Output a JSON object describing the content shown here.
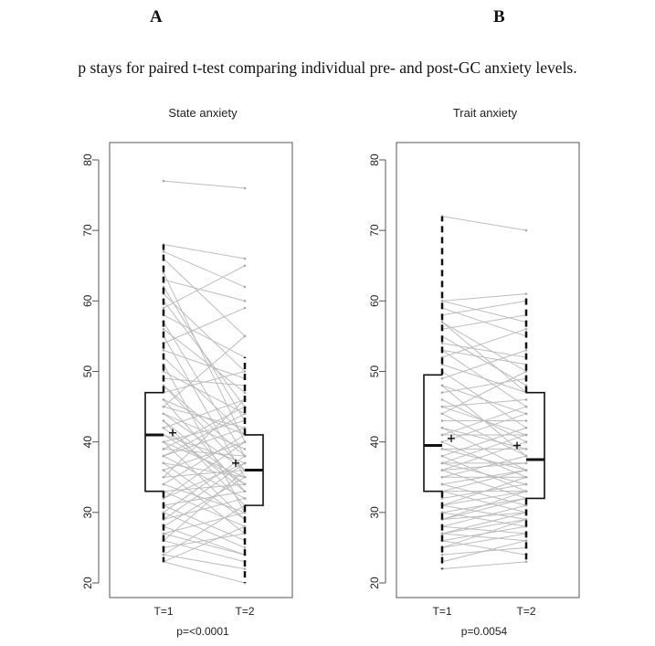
{
  "panel_letters": [
    "A",
    "B"
  ],
  "caption": "p stays for paired t-test comparing individual pre- and post-GC anxiety levels.",
  "chart_data": [
    {
      "type": "box",
      "title": "State anxiety",
      "categories": [
        "T=1",
        "T=2"
      ],
      "ylim": [
        20,
        80
      ],
      "yticks": [
        20,
        30,
        40,
        50,
        60,
        70,
        80
      ],
      "p_value_label": "p=<0.0001",
      "boxes": [
        {
          "category": "T=1",
          "min": 23,
          "q1": 33,
          "median": 41,
          "q3": 47,
          "max": 68,
          "mean": 41.3
        },
        {
          "category": "T=2",
          "min": 20,
          "q1": 31,
          "median": 36,
          "q3": 41,
          "max": 52,
          "mean": 37
        }
      ],
      "paired_lines": [
        [
          77,
          76
        ],
        [
          68,
          66
        ],
        [
          67,
          62
        ],
        [
          66,
          55
        ],
        [
          64,
          40
        ],
        [
          63,
          60
        ],
        [
          62,
          43
        ],
        [
          61,
          50
        ],
        [
          60,
          45
        ],
        [
          59,
          65
        ],
        [
          58,
          52
        ],
        [
          57,
          38
        ],
        [
          56,
          47
        ],
        [
          55,
          35
        ],
        [
          54,
          59
        ],
        [
          53,
          49
        ],
        [
          52,
          41
        ],
        [
          51,
          30
        ],
        [
          50,
          44
        ],
        [
          49,
          48
        ],
        [
          48,
          36
        ],
        [
          47,
          50
        ],
        [
          46,
          33
        ],
        [
          45,
          42
        ],
        [
          44,
          39
        ],
        [
          43,
          31
        ],
        [
          42,
          46
        ],
        [
          41,
          37
        ],
        [
          41,
          34
        ],
        [
          40,
          43
        ],
        [
          40,
          29
        ],
        [
          39,
          38
        ],
        [
          38,
          32
        ],
        [
          38,
          44
        ],
        [
          37,
          35
        ],
        [
          36,
          27
        ],
        [
          36,
          40
        ],
        [
          35,
          36
        ],
        [
          34,
          30
        ],
        [
          34,
          41
        ],
        [
          33,
          28
        ],
        [
          33,
          34
        ],
        [
          32,
          37
        ],
        [
          31,
          26
        ],
        [
          31,
          33
        ],
        [
          30,
          38
        ],
        [
          30,
          25
        ],
        [
          29,
          32
        ],
        [
          28,
          35
        ],
        [
          28,
          24
        ],
        [
          27,
          30
        ],
        [
          26,
          23
        ],
        [
          26,
          36
        ],
        [
          25,
          27
        ],
        [
          24,
          22
        ],
        [
          24,
          31
        ],
        [
          23,
          20
        ],
        [
          23,
          28
        ],
        [
          45,
          55
        ],
        [
          42,
          33
        ],
        [
          39,
          45
        ],
        [
          37,
          29
        ],
        [
          35,
          46
        ],
        [
          32,
          40
        ],
        [
          29,
          37
        ],
        [
          27,
          24
        ],
        [
          48,
          38
        ],
        [
          44,
          36
        ],
        [
          46,
          41
        ],
        [
          43,
          34
        ],
        [
          40,
          35
        ],
        [
          38,
          42
        ]
      ]
    },
    {
      "type": "box",
      "title": "Trait anxiety",
      "categories": [
        "T=1",
        "T=2"
      ],
      "ylim": [
        20,
        80
      ],
      "yticks": [
        20,
        30,
        40,
        50,
        60,
        70,
        80
      ],
      "p_value_label": "p=0.0054",
      "boxes": [
        {
          "category": "T=1",
          "min": 22,
          "q1": 33,
          "median": 39.5,
          "q3": 49.5,
          "max": 72,
          "mean": 40.5
        },
        {
          "category": "T=2",
          "min": 23,
          "q1": 32,
          "median": 37.5,
          "q3": 47,
          "max": 60.5,
          "mean": 39.5
        }
      ],
      "paired_lines": [
        [
          72,
          70
        ],
        [
          60,
          61
        ],
        [
          60,
          57
        ],
        [
          59,
          55
        ],
        [
          58,
          60
        ],
        [
          57,
          50
        ],
        [
          56,
          58
        ],
        [
          55,
          48
        ],
        [
          54,
          52
        ],
        [
          53,
          45
        ],
        [
          52,
          56
        ],
        [
          51,
          47
        ],
        [
          50,
          42
        ],
        [
          49,
          53
        ],
        [
          48,
          44
        ],
        [
          47,
          49
        ],
        [
          46,
          40
        ],
        [
          45,
          46
        ],
        [
          44,
          38
        ],
        [
          43,
          43
        ],
        [
          42,
          36
        ],
        [
          41,
          41
        ],
        [
          40,
          44
        ],
        [
          40,
          35
        ],
        [
          39,
          39
        ],
        [
          38,
          42
        ],
        [
          38,
          33
        ],
        [
          37,
          37
        ],
        [
          37,
          34
        ],
        [
          36,
          40
        ],
        [
          36,
          32
        ],
        [
          35,
          35
        ],
        [
          35,
          38
        ],
        [
          34,
          31
        ],
        [
          34,
          36
        ],
        [
          33,
          33
        ],
        [
          33,
          30
        ],
        [
          32,
          34
        ],
        [
          31,
          29
        ],
        [
          31,
          35
        ],
        [
          30,
          32
        ],
        [
          30,
          28
        ],
        [
          29,
          30
        ],
        [
          29,
          33
        ],
        [
          28,
          27
        ],
        [
          28,
          31
        ],
        [
          27,
          29
        ],
        [
          27,
          26
        ],
        [
          26,
          28
        ],
        [
          26,
          24
        ],
        [
          25,
          27
        ],
        [
          24,
          25
        ],
        [
          23,
          26
        ],
        [
          22,
          23
        ],
        [
          57,
          47
        ],
        [
          53,
          51
        ],
        [
          48,
          38
        ],
        [
          45,
          41
        ],
        [
          42,
          39
        ],
        [
          39,
          36
        ],
        [
          36,
          37
        ],
        [
          33,
          36
        ],
        [
          31,
          33
        ],
        [
          29,
          32
        ],
        [
          27,
          30
        ],
        [
          25,
          29
        ],
        [
          44,
          50
        ],
        [
          41,
          45
        ],
        [
          37,
          41
        ]
      ]
    }
  ]
}
